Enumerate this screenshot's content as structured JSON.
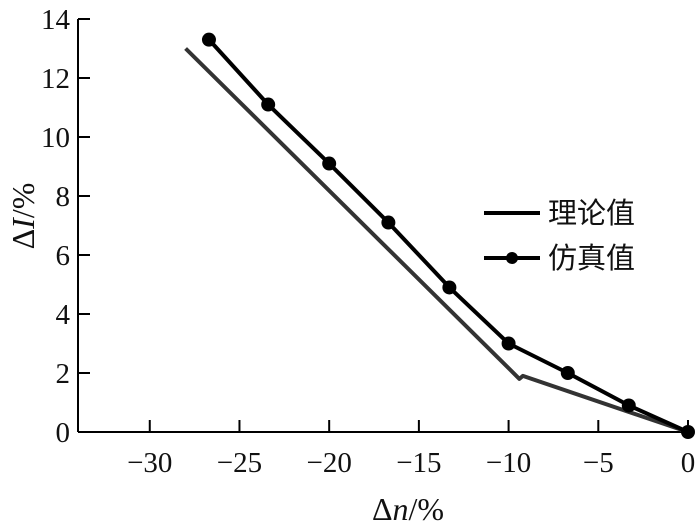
{
  "chart_data": {
    "type": "line",
    "xlabel": "Δn/%",
    "ylabel": "ΔI/%",
    "xlim": [
      -34,
      0
    ],
    "ylim": [
      0,
      14
    ],
    "xticks": [
      {
        "value": -30,
        "label": "−30"
      },
      {
        "value": -25,
        "label": "−25"
      },
      {
        "value": -20,
        "label": "−20"
      },
      {
        "value": -15,
        "label": "−15"
      },
      {
        "value": -10,
        "label": "−10"
      },
      {
        "value": -5,
        "label": "−5"
      },
      {
        "value": 0,
        "label": "0"
      }
    ],
    "yticks": [
      {
        "value": 0,
        "label": "0"
      },
      {
        "value": 2,
        "label": "2"
      },
      {
        "value": 4,
        "label": "4"
      },
      {
        "value": 6,
        "label": "6"
      },
      {
        "value": 8,
        "label": "8"
      },
      {
        "value": 10,
        "label": "10"
      },
      {
        "value": 12,
        "label": "12"
      },
      {
        "value": 14,
        "label": "14"
      }
    ],
    "legend_position": "right",
    "series": [
      {
        "name": "理论值",
        "marker": "none",
        "color": "#333333",
        "points": [
          [
            -28.0,
            13.0
          ],
          [
            -9.4,
            1.8
          ],
          [
            -9.2,
            1.9
          ],
          [
            0.0,
            0.0
          ]
        ]
      },
      {
        "name": "仿真值",
        "marker": "circle",
        "color": "#000000",
        "points": [
          [
            -26.7,
            13.3
          ],
          [
            -23.4,
            11.1
          ],
          [
            -20.0,
            9.1
          ],
          [
            -16.7,
            7.1
          ],
          [
            -13.3,
            4.9
          ],
          [
            -10.0,
            3.0
          ],
          [
            -6.7,
            2.0
          ],
          [
            -3.3,
            0.9
          ],
          [
            0.0,
            0.0
          ]
        ]
      }
    ]
  }
}
